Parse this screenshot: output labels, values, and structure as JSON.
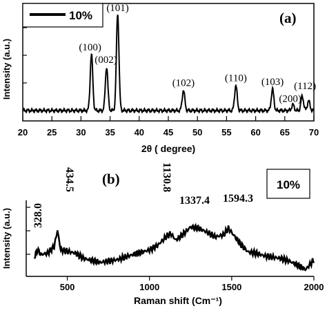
{
  "chart_data": [
    {
      "type": "line",
      "panel_label": "(a)",
      "xlabel": "2θ ( degree)",
      "ylabel": "Intensity (a.u.)",
      "xlim": [
        20,
        70
      ],
      "x_ticks": [
        "20",
        "25",
        "30",
        "35",
        "40",
        "45",
        "50",
        "55",
        "60",
        "65",
        "70"
      ],
      "legend": {
        "label": "10%",
        "placement": "top-left"
      },
      "grid": false,
      "series": [
        {
          "peaks": [
            {
              "x": 31.8,
              "h": 0.58,
              "label": "(100)"
            },
            {
              "x": 34.4,
              "h": 0.45,
              "label": "(002)"
            },
            {
              "x": 36.3,
              "h": 1.0,
              "label": "(101)"
            },
            {
              "x": 47.6,
              "h": 0.21,
              "label": "(102)"
            },
            {
              "x": 56.6,
              "h": 0.26,
              "label": "(110)"
            },
            {
              "x": 62.9,
              "h": 0.22,
              "label": "(103)"
            },
            {
              "x": 66.4,
              "h": 0.06,
              "label": "(200)"
            },
            {
              "x": 68.0,
              "h": 0.15,
              "label": "(112)"
            },
            {
              "x": 69.1,
              "h": 0.1,
              "label": ""
            }
          ]
        }
      ]
    },
    {
      "type": "line",
      "panel_label": "(b)",
      "xlabel": "Raman shift (Cm⁻¹)",
      "ylabel": "Intensity (a.u.)",
      "xlim": [
        250,
        2000
      ],
      "x_ticks": [
        "500",
        "1000",
        "1500",
        "2000"
      ],
      "legend": {
        "label": "10%",
        "placement": "top-right"
      },
      "grid": false,
      "annotations": [
        {
          "x": 328,
          "label": "328.0"
        },
        {
          "x": 434,
          "label": "434.5"
        },
        {
          "x": 1130,
          "label": "1130.8"
        },
        {
          "x": 1337,
          "label": "1337.4"
        },
        {
          "x": 1594,
          "label": "1594.3"
        }
      ],
      "series": [
        {
          "x": [
            300,
            320,
            340,
            380,
            420,
            440,
            460,
            500,
            550,
            600,
            700,
            800,
            900,
            1000,
            1050,
            1100,
            1130,
            1160,
            1200,
            1250,
            1300,
            1350,
            1400,
            1450,
            1480,
            1520,
            1560,
            1600,
            1650,
            1700,
            1750,
            1800,
            1850,
            1900,
            1950,
            2000
          ],
          "y": [
            0.25,
            0.35,
            0.28,
            0.3,
            0.4,
            0.65,
            0.35,
            0.33,
            0.3,
            0.22,
            0.16,
            0.2,
            0.28,
            0.35,
            0.42,
            0.55,
            0.6,
            0.5,
            0.58,
            0.7,
            0.68,
            0.62,
            0.55,
            0.58,
            0.68,
            0.55,
            0.42,
            0.32,
            0.3,
            0.26,
            0.24,
            0.22,
            0.18,
            0.12,
            0.05,
            0.2
          ]
        }
      ]
    }
  ]
}
